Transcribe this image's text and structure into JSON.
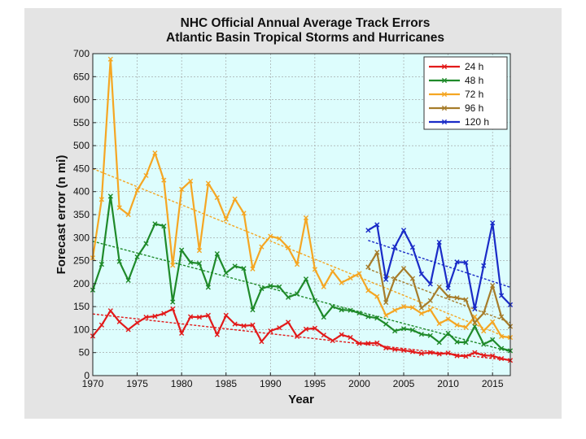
{
  "chart_data": {
    "type": "line",
    "title": "NHC Official Annual Average Track Errors",
    "subtitle": "Atlantic Basin Tropical Storms and Hurricanes",
    "xlabel": "Year",
    "ylabel": "Forecast error (n mi)",
    "xlim": [
      1970,
      2017
    ],
    "ylim": [
      0,
      700
    ],
    "xticks": [
      1970,
      1975,
      1980,
      1985,
      1990,
      1995,
      2000,
      2005,
      2010,
      2015
    ],
    "yticks": [
      0,
      50,
      100,
      150,
      200,
      250,
      300,
      350,
      400,
      450,
      500,
      550,
      600,
      650,
      700
    ],
    "grid": true,
    "legend_position": "top-right",
    "series": [
      {
        "name": "24 h",
        "color": "#e21a1a",
        "x": [
          1970,
          1971,
          1972,
          1973,
          1974,
          1975,
          1976,
          1977,
          1978,
          1979,
          1980,
          1981,
          1982,
          1983,
          1984,
          1985,
          1986,
          1987,
          1988,
          1989,
          1990,
          1991,
          1992,
          1993,
          1994,
          1995,
          1996,
          1997,
          1998,
          1999,
          2000,
          2001,
          2002,
          2003,
          2004,
          2005,
          2006,
          2007,
          2008,
          2009,
          2010,
          2011,
          2012,
          2013,
          2014,
          2015,
          2016,
          2017
        ],
        "values": [
          86,
          110,
          141,
          117,
          100,
          115,
          127,
          129,
          135,
          145,
          92,
          128,
          127,
          131,
          89,
          131,
          112,
          108,
          110,
          74,
          97,
          104,
          116,
          85,
          101,
          103,
          88,
          76,
          89,
          83,
          70,
          70,
          71,
          60,
          57,
          55,
          52,
          48,
          50,
          47,
          49,
          43,
          42,
          50,
          44,
          43,
          37,
          33
        ],
        "trend": [
          134,
          33
        ]
      },
      {
        "name": "48 h",
        "color": "#1f8a2a",
        "x": [
          1970,
          1971,
          1972,
          1973,
          1974,
          1975,
          1976,
          1977,
          1978,
          1979,
          1980,
          1981,
          1982,
          1983,
          1984,
          1985,
          1986,
          1987,
          1988,
          1989,
          1990,
          1991,
          1992,
          1993,
          1994,
          1995,
          1996,
          1997,
          1998,
          1999,
          2000,
          2001,
          2002,
          2003,
          2004,
          2005,
          2006,
          2007,
          2008,
          2009,
          2010,
          2011,
          2012,
          2013,
          2014,
          2015,
          2016,
          2017
        ],
        "values": [
          186,
          242,
          390,
          248,
          207,
          258,
          287,
          330,
          325,
          160,
          273,
          246,
          244,
          192,
          265,
          223,
          238,
          233,
          143,
          189,
          195,
          193,
          170,
          178,
          210,
          163,
          127,
          150,
          143,
          142,
          136,
          128,
          125,
          112,
          97,
          102,
          99,
          90,
          87,
          72,
          92,
          73,
          72,
          107,
          68,
          78,
          59,
          54
        ],
        "trend": [
          292,
          52
        ]
      },
      {
        "name": "72 h",
        "color": "#f5a623",
        "x": [
          1970,
          1971,
          1972,
          1973,
          1974,
          1975,
          1976,
          1977,
          1978,
          1979,
          1980,
          1981,
          1982,
          1983,
          1984,
          1985,
          1986,
          1987,
          1988,
          1989,
          1990,
          1991,
          1992,
          1993,
          1994,
          1995,
          1996,
          1997,
          1998,
          1999,
          2000,
          2001,
          2002,
          2003,
          2004,
          2005,
          2006,
          2007,
          2008,
          2009,
          2010,
          2011,
          2012,
          2013,
          2014,
          2015,
          2016,
          2017
        ],
        "values": [
          256,
          383,
          688,
          365,
          350,
          403,
          435,
          484,
          425,
          240,
          405,
          423,
          272,
          418,
          387,
          340,
          384,
          353,
          232,
          280,
          303,
          298,
          278,
          242,
          343,
          231,
          193,
          227,
          202,
          212,
          222,
          185,
          172,
          131,
          142,
          150,
          148,
          135,
          143,
          113,
          123,
          110,
          105,
          128,
          97,
          117,
          85,
          83
        ],
        "trend": [
          450,
          80
        ]
      },
      {
        "name": "96 h",
        "color": "#a67c2a",
        "x": [
          2001,
          2002,
          2003,
          2004,
          2005,
          2006,
          2007,
          2008,
          2009,
          2010,
          2011,
          2012,
          2013,
          2014,
          2015,
          2016,
          2017
        ],
        "values": [
          236,
          268,
          159,
          211,
          233,
          211,
          147,
          163,
          193,
          172,
          169,
          165,
          115,
          136,
          196,
          128,
          107
        ],
        "trend": [
          232,
          115
        ]
      },
      {
        "name": "120 h",
        "color": "#1a2bc7",
        "x": [
          2001,
          2002,
          2003,
          2004,
          2005,
          2006,
          2007,
          2008,
          2009,
          2010,
          2011,
          2012,
          2013,
          2014,
          2015,
          2016,
          2017
        ],
        "values": [
          316,
          328,
          209,
          280,
          316,
          279,
          221,
          199,
          290,
          190,
          247,
          246,
          145,
          239,
          332,
          174,
          154
        ],
        "trend": [
          294,
          192
        ]
      }
    ]
  }
}
